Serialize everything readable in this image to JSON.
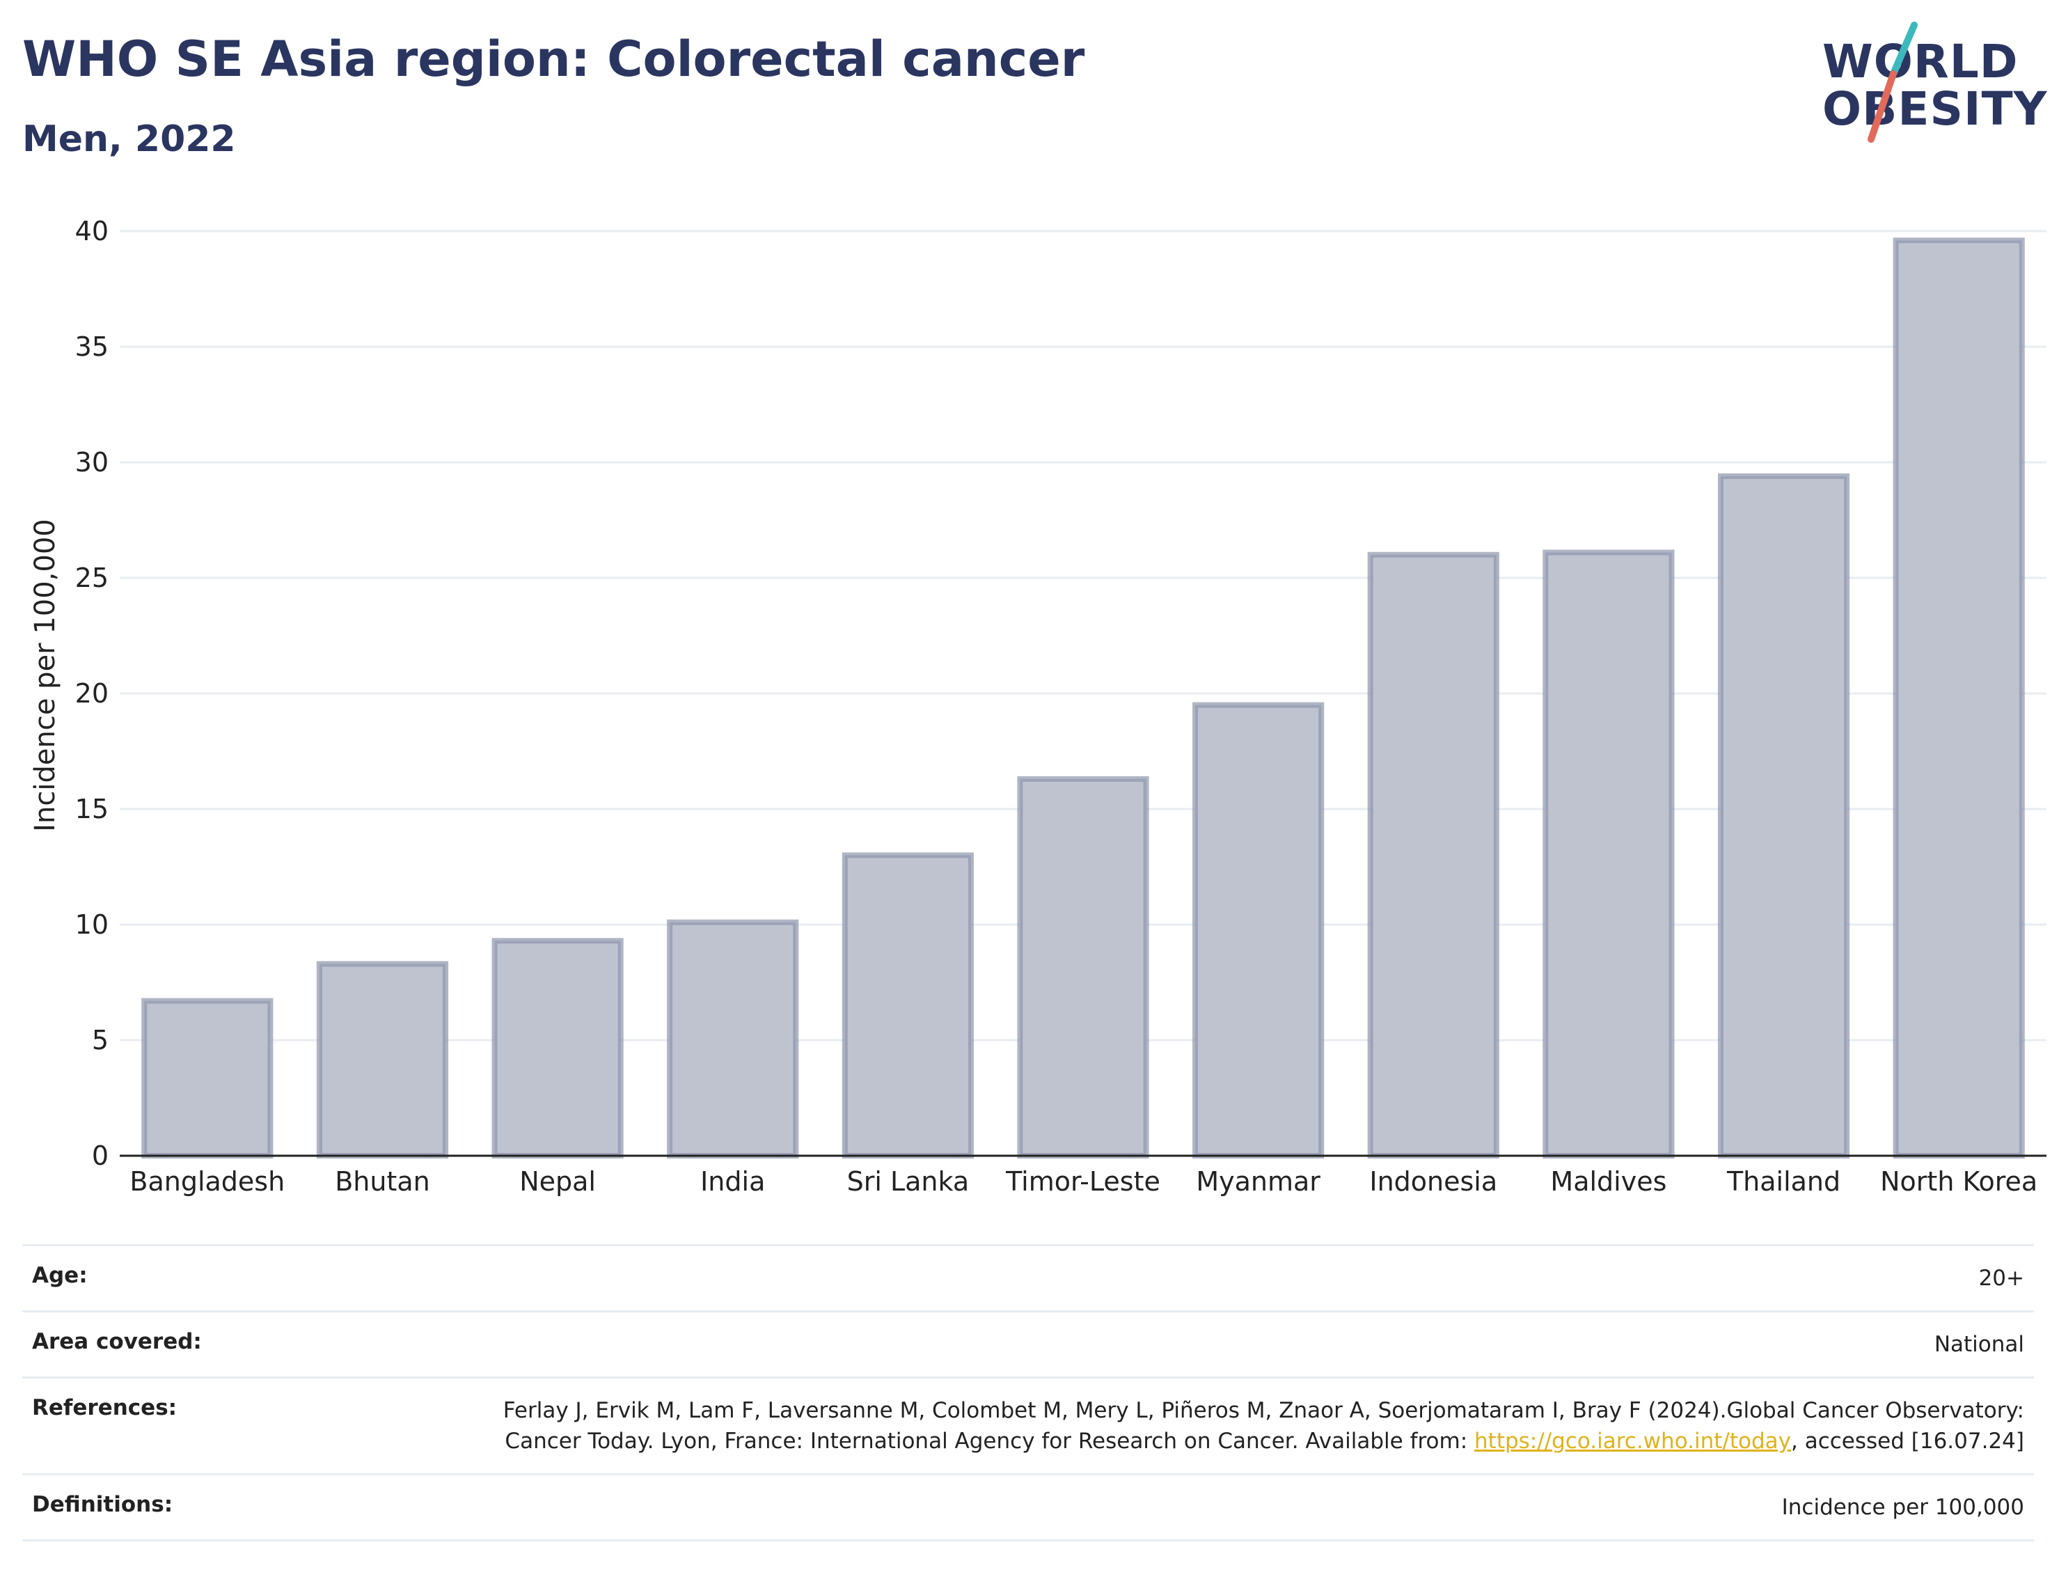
{
  "header": {
    "title": "WHO SE Asia region: Colorectal cancer",
    "subtitle": "Men, 2022"
  },
  "logo": {
    "line1": "WORLD",
    "line2": "OBESITY",
    "colors": {
      "text": "#2a3560",
      "slash_top": "#3cb9bd",
      "slash_bottom": "#e26a5a"
    }
  },
  "chart_data": {
    "type": "bar",
    "categories": [
      "Bangladesh",
      "Bhutan",
      "Nepal",
      "India",
      "Sri Lanka",
      "Timor-Leste",
      "Myanmar",
      "Indonesia",
      "Maldives",
      "Thailand",
      "North Korea"
    ],
    "series": [
      {
        "values": [
          6.7,
          8.3,
          9.3,
          10.1,
          13.0,
          16.3,
          19.5,
          26.0,
          26.1,
          29.4,
          39.6
        ]
      }
    ],
    "ylabel": "Incidence per 100,000",
    "xlabel": "",
    "ylim": [
      0,
      40
    ],
    "yticks": [
      0,
      5,
      10,
      15,
      20,
      25,
      30,
      35,
      40
    ],
    "grid": true,
    "colors": {
      "bar_fill": "#bfc3d0",
      "bar_stroke": "#8f96ad",
      "grid": "#e8ecf0",
      "axis": "#222222"
    }
  },
  "meta": {
    "age_label": "Age:",
    "age_value": "20+",
    "area_label": "Area covered:",
    "area_value": "National",
    "references_label": "References:",
    "references_text": "Ferlay J, Ervik M, Lam F, Laversanne M, Colombet M, Mery L, Piñeros M, Znaor A, Soerjomataram I, Bray F (2024).Global Cancer Observatory: Cancer Today. Lyon, France: International Agency for Research on Cancer. Available from: ",
    "references_link": "https://gco.iarc.who.int/today",
    "references_tail": ", accessed [16.07.24]",
    "definitions_label": "Definitions:",
    "definitions_value": "Incidence per 100,000",
    "link_color": "#e0b21b"
  }
}
